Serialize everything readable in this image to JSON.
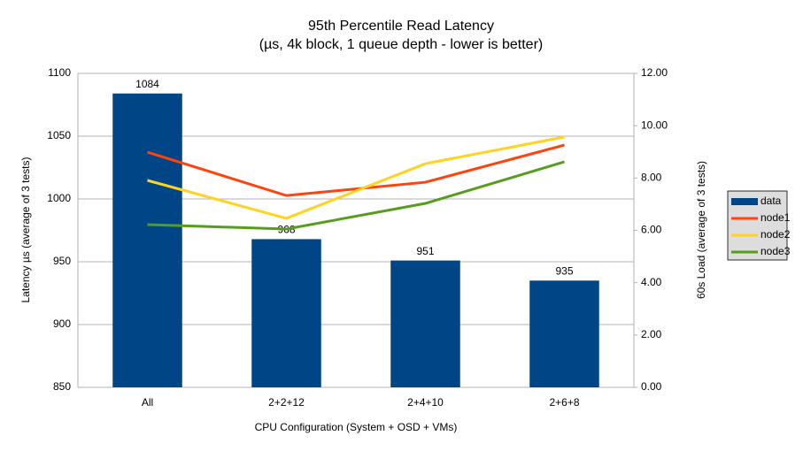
{
  "chart_data": {
    "type": "bar",
    "title": "95th Percentile Read Latency",
    "subtitle": "(µs, 4k block, 1 queue depth - lower is better)",
    "x_label": "CPU Configuration (System + OSD + VMs)",
    "y_label": "Latency µs (average of 3 tests)",
    "y2_label": "60s Load (average of 3 tests)",
    "categories": [
      "All",
      "2+2+12",
      "2+4+10",
      "2+6+8"
    ],
    "series": [
      {
        "name": "data",
        "color": "#004586",
        "values": [
          1084,
          968,
          951,
          935
        ]
      },
      {
        "name": "node1",
        "color": "#ff420e",
        "axis": "y2",
        "values": [
          8.99,
          7.33,
          7.84,
          9.26
        ]
      },
      {
        "name": "node2",
        "color": "#ffd320",
        "axis": "y2",
        "values": [
          7.91,
          6.46,
          8.55,
          9.57
        ]
      },
      {
        "name": "node3",
        "color": "#579d1c",
        "axis": "y2",
        "values": [
          6.22,
          6.05,
          7.03,
          8.62
        ]
      }
    ],
    "ylim": [
      850,
      1100
    ],
    "yticks": [
      850,
      900,
      950,
      1000,
      1050,
      1100
    ],
    "y2lim": [
      0,
      12
    ],
    "y2ticks": [
      {
        "value": 0,
        "label": "0.00"
      },
      {
        "value": 2,
        "label": "2.00"
      },
      {
        "value": 4,
        "label": "4.00"
      },
      {
        "value": 6,
        "label": "6.00"
      },
      {
        "value": 8,
        "label": "8.00"
      },
      {
        "value": 10,
        "label": "10.00"
      },
      {
        "value": 12,
        "label": "12.00"
      }
    ],
    "grid": true,
    "legend": "right"
  }
}
